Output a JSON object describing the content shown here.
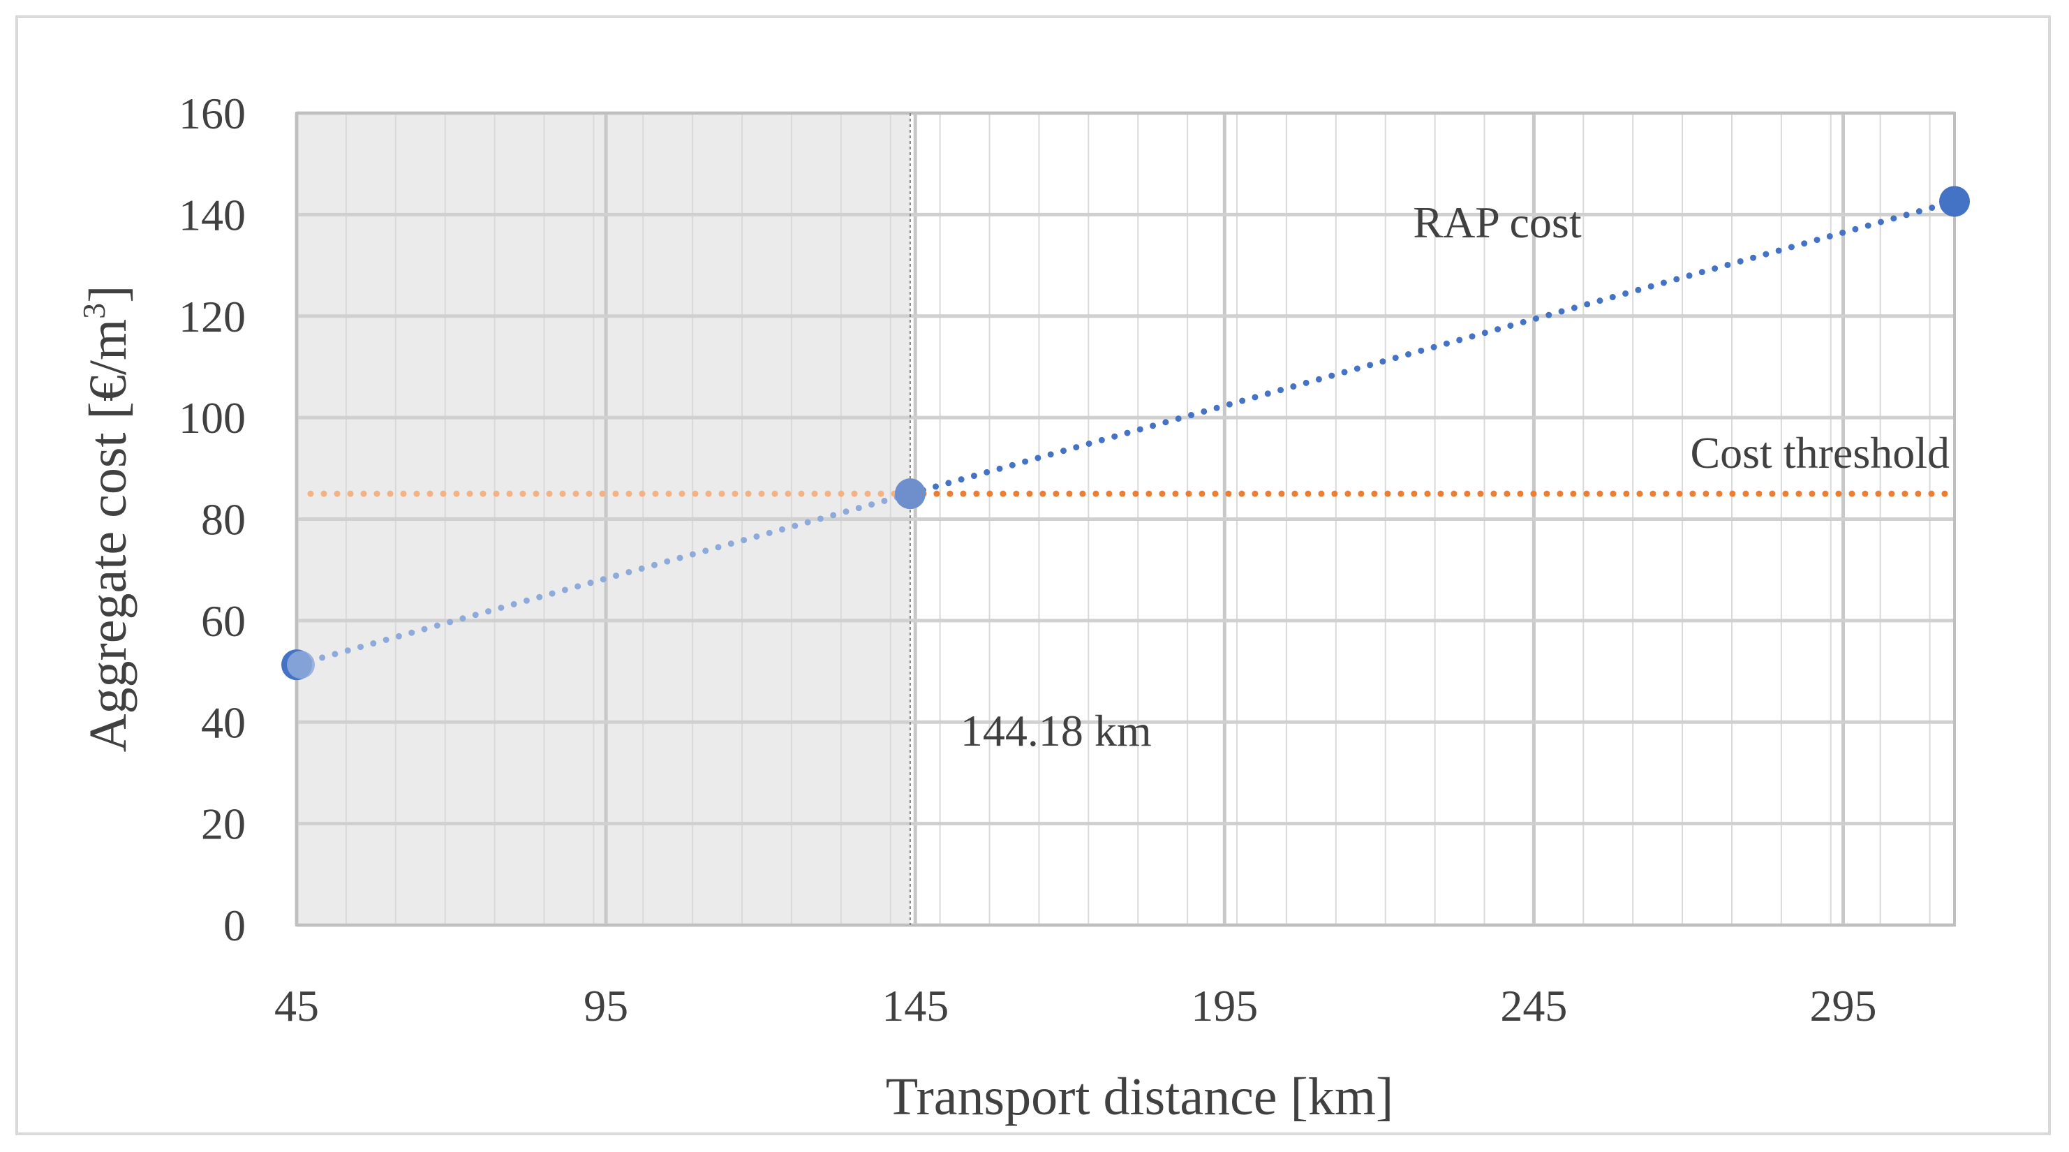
{
  "chart_data": {
    "type": "line",
    "xlabel": "Transport distance [km]",
    "ylabel_main": "Aggregate cost [€/m",
    "ylabel_sup": "3",
    "ylabel_close": "]",
    "xlim": [
      45,
      313
    ],
    "ylim": [
      0,
      160
    ],
    "x_ticks": [
      45,
      95,
      145,
      195,
      245,
      295
    ],
    "y_ticks": [
      0,
      20,
      40,
      60,
      80,
      100,
      120,
      140,
      160
    ],
    "x_minor_step": 8,
    "y_minor_step": 20,
    "grid": true,
    "shaded_region": {
      "x_from": 45,
      "x_to": 144.18,
      "color": "#ebebeb"
    },
    "series": [
      {
        "label": "RAP cost",
        "color": "#4472c4",
        "color_faded": "#8eaadb",
        "points": [
          [
            45,
            51.3
          ],
          [
            144.18,
            85
          ],
          [
            313,
            142.6
          ]
        ]
      },
      {
        "label": "Cost threshold",
        "color": "#ed7d31",
        "color_faded": "#f4b183",
        "y": 85
      }
    ],
    "annotation": {
      "text": "144.18 km",
      "x": 144.18
    }
  }
}
